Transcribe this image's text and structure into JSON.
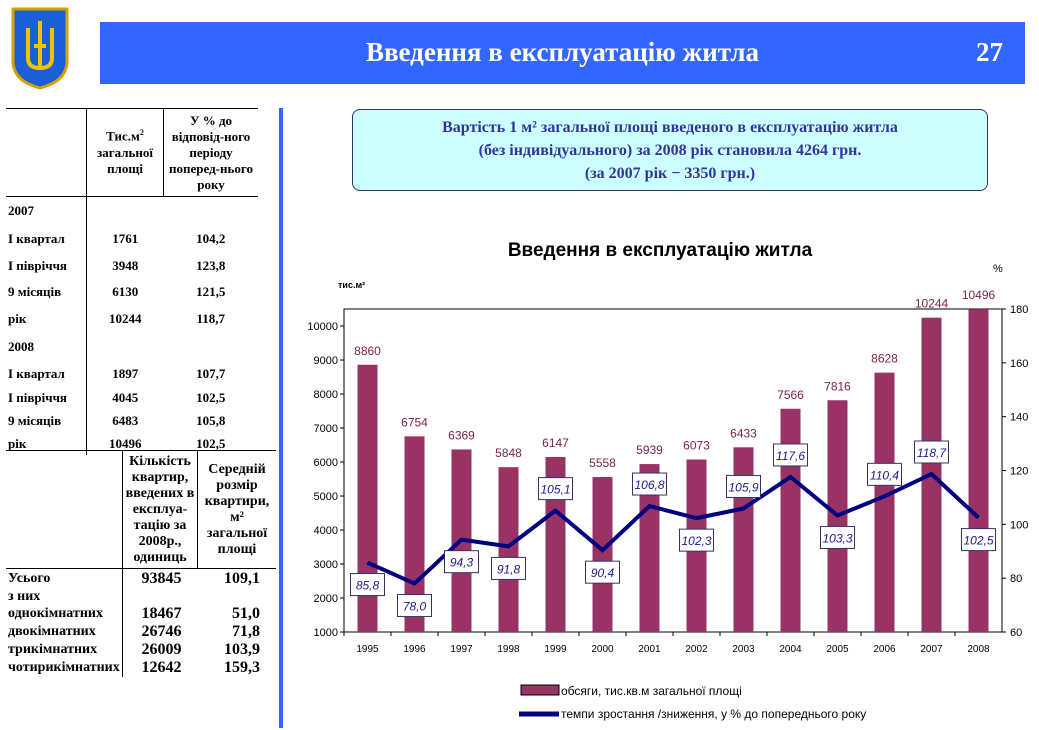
{
  "header": {
    "title": "Введення в експлуатацію житла",
    "page": "27"
  },
  "table1": {
    "h1": "Тис.м",
    "h1sup": "2",
    "h1b": "загальної площі",
    "h2": "У % до відповід-ного періоду поперед-нього року",
    "rows": [
      [
        "2007",
        "",
        ""
      ],
      [
        "I квартал",
        "1761",
        "104,2"
      ],
      [
        "I півріччя",
        "3948",
        "123,8"
      ],
      [
        "9 місяців",
        "6130",
        "121,5"
      ],
      [
        "рік",
        "10244",
        "118,7"
      ],
      [
        "2008",
        "",
        ""
      ],
      [
        "I квартал",
        "1897",
        "107,7"
      ],
      [
        "I півріччя",
        "4045",
        "102,5"
      ],
      [
        "9 місяців",
        "6483",
        "105,8"
      ],
      [
        "рік",
        "10496",
        "102,5"
      ]
    ]
  },
  "table2": {
    "h1": "Кількість квартир, введених в експлуа-тацію за 2008р., одиниць",
    "h2": "Середній розмір квартири, м² загальної площі",
    "rows": [
      [
        "Усього",
        "93845",
        "109,1"
      ],
      [
        "з них",
        "",
        ""
      ],
      [
        "однокімнатних",
        "18467",
        "51,0"
      ],
      [
        "двокімнатних",
        "26746",
        "71,8"
      ],
      [
        "трикімнатних",
        "26009",
        "103,9"
      ],
      [
        "чотирикімнатних",
        "12642",
        "159,3"
      ]
    ]
  },
  "note": {
    "line1": "Вартість 1 м² загальної площі введеного в експлуатацію житла",
    "line2": "(без індивідуального) за 2008 рік становила 4264 грн.",
    "line3": "(за 2007 рік − 3350 грн.)"
  },
  "chart_data": {
    "type": "bar",
    "title": "Введення в експлуатацію житла",
    "ylabel": "тис.м²",
    "y2label": "%",
    "categories": [
      "1995",
      "1996",
      "1997",
      "1998",
      "1999",
      "2000",
      "2001",
      "2002",
      "2003",
      "2004",
      "2005",
      "2006",
      "2007",
      "2008"
    ],
    "ylim": [
      1000,
      10500
    ],
    "yticks": [
      1000,
      2000,
      3000,
      4000,
      5000,
      6000,
      7000,
      8000,
      9000,
      10000
    ],
    "y2lim": [
      60,
      180
    ],
    "y2ticks": [
      60,
      80,
      100,
      120,
      140,
      160,
      180
    ],
    "series": [
      {
        "name": "обсяги, тис.кв.м загальної площі",
        "type": "bar",
        "color": "#993366",
        "values": [
          8860,
          6754,
          6369,
          5848,
          6147,
          5558,
          5939,
          6073,
          6433,
          7566,
          7816,
          8628,
          10244,
          10496
        ]
      },
      {
        "name": "темпи зростання /зниження, у % до попереднього року",
        "type": "line",
        "axis": "right",
        "color": "#000080",
        "values": [
          85.8,
          78.0,
          94.3,
          91.8,
          105.1,
          90.4,
          106.8,
          102.3,
          105.9,
          117.6,
          103.3,
          110.4,
          118.7,
          102.5
        ],
        "labels": [
          "85,8",
          "78,0",
          "94,3",
          "91,8",
          "105,1",
          "90,4",
          "106,8",
          "102,3",
          "105,9",
          "117,6",
          "103,3",
          "110,4",
          "118,7",
          "102,5"
        ]
      }
    ]
  }
}
